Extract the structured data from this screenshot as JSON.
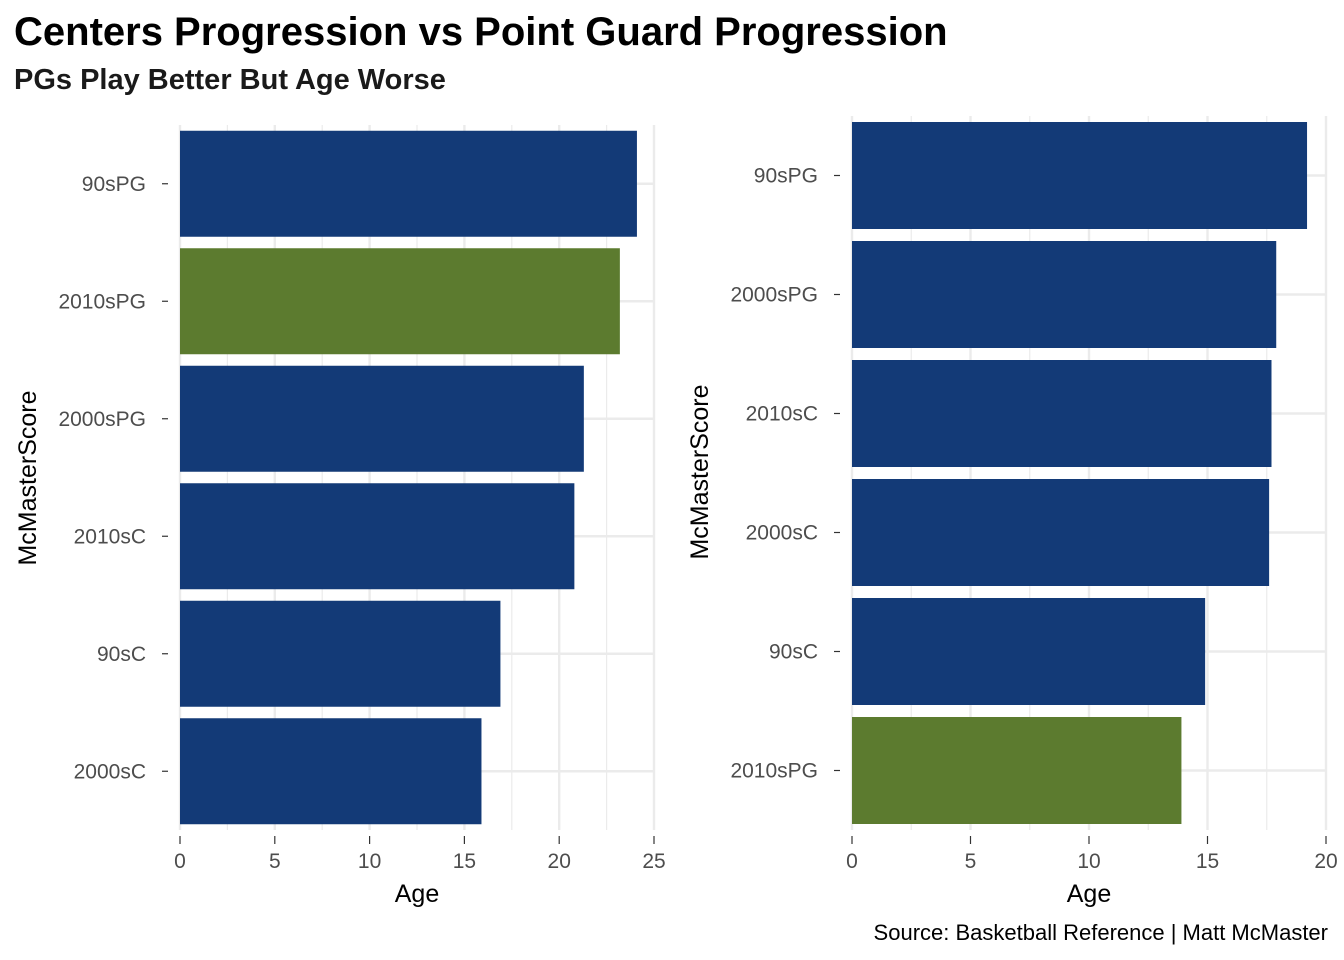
{
  "title": "Centers Progression vs Point Guard Progression",
  "subtitle": "PGs Play Better But Age Worse",
  "caption": "Source: Basketball Reference | Matt McMaster",
  "colors": {
    "bar": "#133a77",
    "highlight": "#5c7b2f",
    "grid": "#ebebeb",
    "tick_text": "#4d4d4d"
  },
  "chart_data": [
    {
      "type": "bar",
      "orientation": "horizontal",
      "xlabel": "Age",
      "ylabel": "McMasterScore",
      "xlim": [
        0,
        25
      ],
      "xticks": [
        0,
        5,
        10,
        15,
        20,
        25
      ],
      "categories": [
        "90sPG",
        "2010sPG",
        "2000sPG",
        "2010sC",
        "90sC",
        "2000sC"
      ],
      "values": [
        24.1,
        23.2,
        21.3,
        20.8,
        16.9,
        15.9
      ],
      "highlight": [
        "2010sPG"
      ],
      "grid": true
    },
    {
      "type": "bar",
      "orientation": "horizontal",
      "xlabel": "Age",
      "ylabel": "McMasterScore",
      "xlim": [
        0,
        20
      ],
      "xticks": [
        0,
        5,
        10,
        15,
        20
      ],
      "categories": [
        "90sPG",
        "2000sPG",
        "2010sC",
        "2000sC",
        "90sC",
        "2010sPG"
      ],
      "values": [
        19.2,
        17.9,
        17.7,
        17.6,
        14.9,
        13.9
      ],
      "highlight": [
        "2010sPG"
      ],
      "grid": true
    }
  ]
}
